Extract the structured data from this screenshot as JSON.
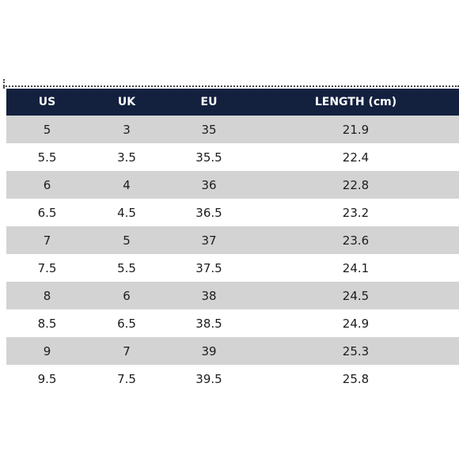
{
  "table": {
    "headers": [
      "US",
      "UK",
      "EU",
      "LENGTH (cm)"
    ],
    "rows": [
      [
        "5",
        "3",
        "35",
        "21.9"
      ],
      [
        "5.5",
        "3.5",
        "35.5",
        "22.4"
      ],
      [
        "6",
        "4",
        "36",
        "22.8"
      ],
      [
        "6.5",
        "4.5",
        "36.5",
        "23.2"
      ],
      [
        "7",
        "5",
        "37",
        "23.6"
      ],
      [
        "7.5",
        "5.5",
        "37.5",
        "24.1"
      ],
      [
        "8",
        "6",
        "38",
        "24.5"
      ],
      [
        "8.5",
        "6.5",
        "38.5",
        "24.9"
      ],
      [
        "9",
        "7",
        "39",
        "25.3"
      ],
      [
        "9.5",
        "7.5",
        "39.5",
        "25.8"
      ]
    ]
  },
  "colors": {
    "header_bg": "#13213f",
    "header_text": "#ffffff",
    "stripe_bg": "#d3d3d3",
    "body_text": "#1c1c1c"
  }
}
